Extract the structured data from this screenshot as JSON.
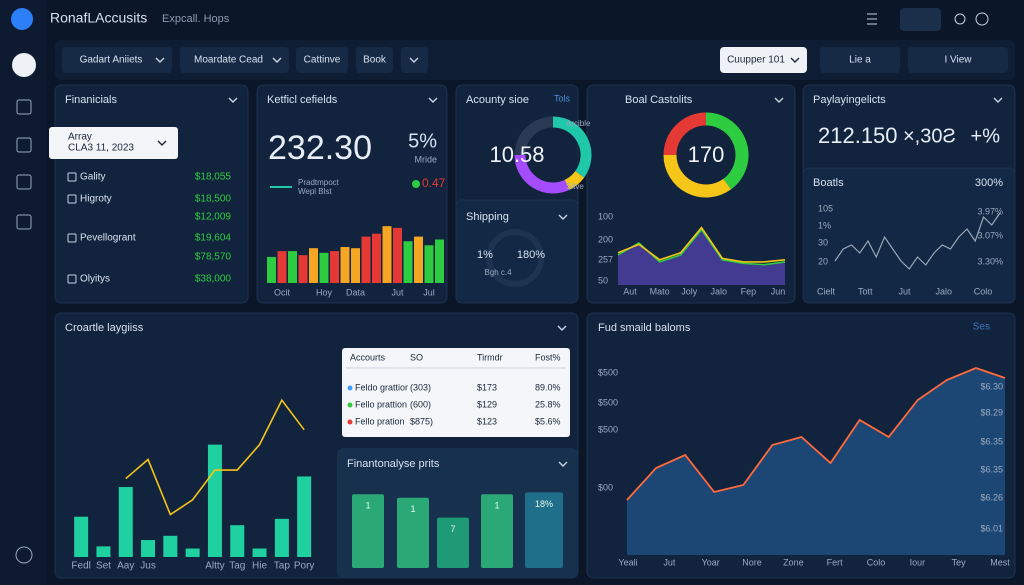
{
  "header": {
    "brand": "RonafLAccusits",
    "search": "Expcall. Hops"
  },
  "toolbar": {
    "filters": [
      "Gadart Aniiets",
      "Moardate Cead",
      "Cattinve",
      "Book"
    ],
    "picker": "Cuupper 101",
    "actions": [
      "Lie a",
      "I View"
    ]
  },
  "financials": {
    "title": "Finanicials",
    "selector": {
      "label": "Array",
      "date": "CLA3 11, 2023"
    },
    "rows": [
      {
        "label": "Gality",
        "value": "$18,055"
      },
      {
        "label": "Higroty",
        "value": "$18,500"
      },
      {
        "value": "$12,009"
      },
      {
        "label": "Pevellogrant",
        "value": "$19,604"
      },
      {
        "value": "$78,570"
      },
      {
        "label": "Olyitys",
        "value": "$38,000"
      }
    ]
  },
  "key_metrics": {
    "title": "Ketficl cefields",
    "value": "232.30",
    "change": "5%",
    "change_label": "Mride",
    "legend": [
      "Pradtmpoct",
      "Wepl Blst"
    ],
    "delta": "0.47",
    "chart": {
      "type": "bar",
      "categories": [
        null,
        "Ocit",
        null,
        null,
        null,
        "Hoy",
        null,
        null,
        "Data",
        null,
        null,
        null,
        "Jut",
        null,
        null,
        "Jul",
        null
      ],
      "values": [
        45,
        55,
        55,
        48,
        60,
        52,
        55,
        62,
        60,
        80,
        85,
        98,
        95,
        72,
        80,
        65,
        75
      ],
      "colors": [
        "#2ecc40",
        "#e53935",
        "#2ecc40",
        "#e53935",
        "#f5a623",
        "#2ecc40",
        "#e53935",
        "#f5a623",
        "#f5a623",
        "#e53935",
        "#e53935",
        "#f5a623",
        "#e53935",
        "#2ecc40",
        "#f5a623",
        "#2ecc40",
        "#2ecc40"
      ],
      "ylim": [
        0,
        100
      ]
    }
  },
  "accounts": {
    "title": "Acounty sioe",
    "link": "Tols",
    "value": "10.58",
    "labels": [
      "Arcible",
      "Sitve"
    ],
    "segments": [
      {
        "color": "#1fc8a8",
        "value": 35
      },
      {
        "color": "#f5c518",
        "value": 8
      },
      {
        "color": "#a64cff",
        "value": 32
      },
      {
        "color": "#2a3a55",
        "value": 25
      }
    ]
  },
  "shipping": {
    "title": "Shipping",
    "left": "1%",
    "right": "180%",
    "note": "Bgh c.4"
  },
  "boal": {
    "title": "Boal Castolits",
    "value": "170",
    "segments": [
      {
        "color": "#e53935",
        "value": 25
      },
      {
        "color": "#2ecc40",
        "value": 40
      },
      {
        "color": "#f5c518",
        "value": 35
      }
    ],
    "chart": {
      "type": "area",
      "fill": "#4b3fa0",
      "y_labels": [
        "100",
        "200",
        "257",
        "50"
      ],
      "x_labels": [
        "Aut",
        "Mato",
        "Joly",
        "Jalo",
        "Fep",
        "Jun"
      ],
      "ylim": [
        0,
        100
      ],
      "series": [
        {
          "color": "#2ecc40",
          "values": [
            43,
            60,
            33,
            43,
            79,
            36,
            31,
            29,
            33
          ]
        },
        {
          "color": "#f5c518",
          "values": [
            46,
            58,
            36,
            46,
            82,
            38,
            33,
            33,
            36
          ]
        }
      ]
    }
  },
  "payl": {
    "title": "Paylayingelicts",
    "figures": [
      "212.150",
      "×,30Ƨ",
      "+%"
    ],
    "sub_title": "Boatls",
    "sub_value": "300%",
    "chart": {
      "type": "line",
      "color": "#9aa7b8",
      "values": [
        30,
        45,
        50,
        40,
        55,
        35,
        60,
        45,
        30,
        20,
        35,
        25,
        40,
        50,
        45,
        60,
        70,
        55,
        85,
        75,
        90
      ],
      "ylim": [
        0,
        100
      ],
      "y_labels": [
        "105",
        "1%",
        "30",
        "20"
      ],
      "right_labels": [
        "3.97%",
        "3.07%",
        "3.30%"
      ],
      "x_labels": [
        "Cielt",
        "Tott",
        "Jut",
        "Jalo",
        "Colo"
      ]
    }
  },
  "croartle": {
    "title": "Croartle laygiiss",
    "chart": {
      "type": "bar",
      "categories": [
        "Fedl",
        "Set",
        "Aay",
        "Jus",
        null,
        null,
        "Altty",
        "Tag",
        "Hie",
        "Tap",
        "Pory"
      ],
      "bar_color": "#1fd1a0",
      "line_color": "#f5c518",
      "bars": [
        19,
        5,
        33,
        8,
        10,
        4,
        53,
        15,
        4,
        18,
        38
      ],
      "line": [
        null,
        null,
        37,
        46,
        20,
        27,
        41,
        41,
        53,
        74,
        60
      ],
      "ylim": [
        0,
        100
      ]
    }
  },
  "table": {
    "headers": [
      "Accourts",
      "SO",
      "Tirmdr",
      "Fost%"
    ],
    "rows": [
      {
        "color": "#3aa0ff",
        "cells": [
          "Feldo grattior",
          "(303)",
          "$173",
          "89.0%"
        ]
      },
      {
        "color": "#2ecc40",
        "cells": [
          "Fello prattion",
          "(600)",
          "$129",
          "25.8%"
        ]
      },
      {
        "color": "#e53935",
        "cells": [
          "Fello pration",
          "$875)",
          "$123",
          "$5.6%"
        ]
      }
    ]
  },
  "analysis": {
    "title": "Finantonalyse prits",
    "ylim": [
      0,
      100
    ],
    "bars": [
      {
        "value": 82,
        "tag": "1",
        "color": "#2aa876"
      },
      {
        "value": 78,
        "tag": "1",
        "color": "#2aa876"
      },
      {
        "value": 56,
        "tag": "7",
        "color": "#1f9a76"
      },
      {
        "value": 82,
        "tag": "1",
        "color": "#2aa876"
      },
      {
        "value": 84,
        "tag": "18%",
        "color": "#1f6f8a"
      }
    ]
  },
  "fud": {
    "title": "Fud smaild baloms",
    "link": "Ses",
    "chart": {
      "type": "area",
      "color": "#ff6a3d",
      "fill": "#1e4a7a",
      "values": [
        27.5,
        43.5,
        50,
        31.5,
        35,
        55,
        59,
        46,
        67.5,
        59,
        77.5,
        87.5,
        93.5,
        88.5
      ],
      "ylim": [
        0,
        100
      ],
      "y_labels": [
        "$500",
        "$500",
        "$500",
        "$00"
      ],
      "right_labels": [
        "$6.30",
        "$8.29",
        "$6.35",
        "$6.35",
        "$6.26",
        "$6.01"
      ],
      "x_labels": [
        "Yeali",
        "Jut",
        "Yoar",
        "Nore",
        "Zone",
        "Fert",
        "Colo",
        "Iour",
        "Tey",
        "Mest"
      ]
    }
  }
}
